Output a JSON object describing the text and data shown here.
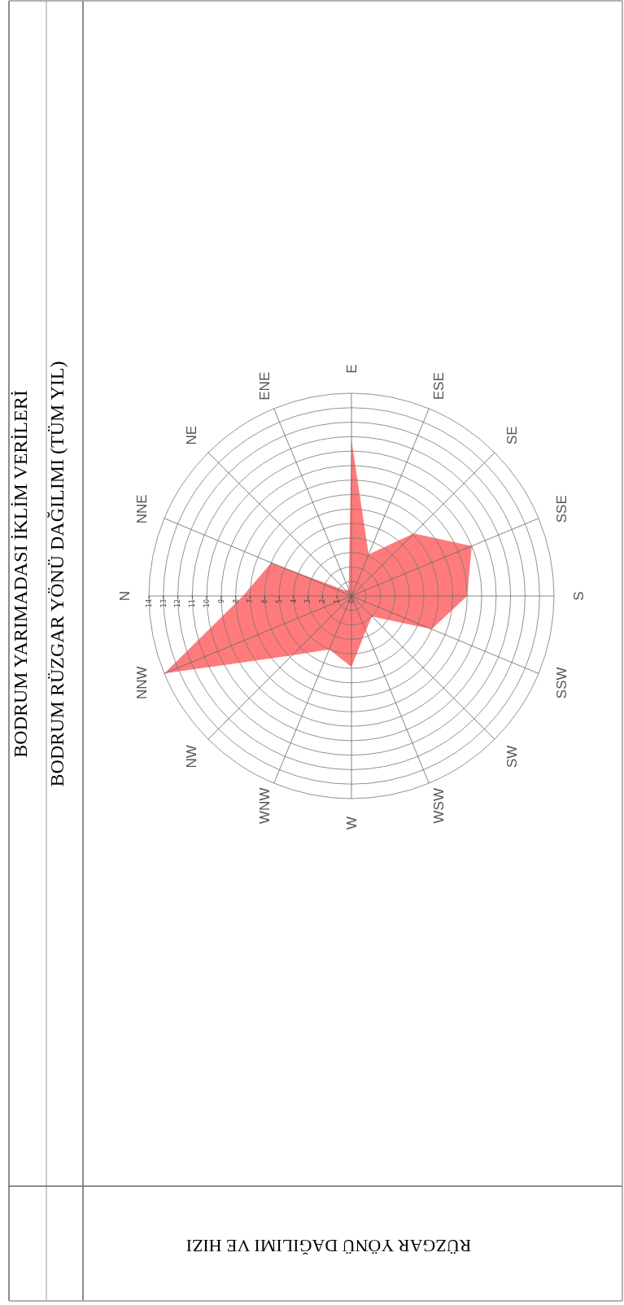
{
  "chart_data": {
    "type": "radar",
    "title": "BODRUM YARIMADASI İKLİM VERİLERİ",
    "subtitle": "BODRUM RÜZGAR YÖNÜ DAĞILIMI (TÜM YIL)",
    "annotations": [
      "RÜZGAR YÖNÜ DAĞILIMI VE HIZI"
    ],
    "categories": [
      "N",
      "NNE",
      "NE",
      "ENE",
      "E",
      "ESE",
      "SE",
      "SSE",
      "S",
      "SSW",
      "SW",
      "WSW",
      "W",
      "WNW",
      "NW",
      "NNW"
    ],
    "series": [
      {
        "color": "#ff7b7b",
        "values": [
          7.5,
          6,
          0.5,
          0.5,
          10.8,
          3.1,
          6.1,
          9,
          8,
          6,
          2,
          2.6,
          4.9,
          4,
          5.8,
          14
        ]
      }
    ],
    "ylim": [
      0,
      14
    ],
    "yticks": [
      0,
      1,
      2,
      3,
      4,
      5,
      6,
      7,
      8,
      9,
      10,
      11,
      12,
      13,
      14
    ],
    "grid": true
  }
}
